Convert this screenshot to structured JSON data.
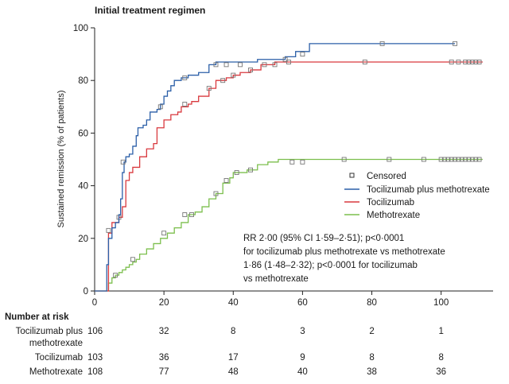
{
  "chart_data": {
    "type": "line",
    "subtype": "kaplan-meier",
    "title": "Initial treatment regimen",
    "ylabel": "Sustained remission (% of patients)",
    "xlim": [
      0,
      115
    ],
    "ylim": [
      0,
      100
    ],
    "x_ticks": [
      0,
      20,
      40,
      60,
      80,
      100
    ],
    "y_ticks": [
      0,
      20,
      40,
      60,
      80,
      100
    ],
    "grid": false,
    "legend_position": "center-right",
    "censored_label": "Censored",
    "series": [
      {
        "name": "Tocilizumab plus methotrexate",
        "color": "#2b5fa8",
        "steps": [
          [
            0,
            0
          ],
          [
            3,
            0
          ],
          [
            3.5,
            10
          ],
          [
            4,
            20
          ],
          [
            5,
            24
          ],
          [
            6,
            26
          ],
          [
            7,
            29
          ],
          [
            7.5,
            35
          ],
          [
            8,
            45
          ],
          [
            8.5,
            49
          ],
          [
            9,
            51
          ],
          [
            10,
            52
          ],
          [
            11,
            55
          ],
          [
            12,
            59
          ],
          [
            12.5,
            62
          ],
          [
            14,
            63
          ],
          [
            15,
            65
          ],
          [
            16,
            68
          ],
          [
            18,
            69
          ],
          [
            19,
            71
          ],
          [
            20,
            74
          ],
          [
            21,
            76
          ],
          [
            22,
            78
          ],
          [
            23,
            80
          ],
          [
            25,
            81
          ],
          [
            27,
            82
          ],
          [
            30,
            83
          ],
          [
            33,
            86
          ],
          [
            35,
            87
          ],
          [
            45,
            87
          ],
          [
            47,
            88
          ],
          [
            55,
            89
          ],
          [
            58,
            91
          ],
          [
            62,
            94
          ],
          [
            104,
            94
          ]
        ],
        "censored": [
          [
            4,
            23
          ],
          [
            8.2,
            49
          ],
          [
            19,
            70
          ],
          [
            26,
            81
          ],
          [
            35,
            86
          ],
          [
            38,
            86
          ],
          [
            42,
            86
          ],
          [
            55,
            88
          ],
          [
            60,
            90
          ],
          [
            83,
            94
          ],
          [
            104,
            94
          ]
        ]
      },
      {
        "name": "Tocilizumab",
        "color": "#d9393e",
        "steps": [
          [
            0,
            0
          ],
          [
            3,
            0
          ],
          [
            4,
            22
          ],
          [
            5,
            26
          ],
          [
            7,
            28
          ],
          [
            8,
            32
          ],
          [
            9,
            42
          ],
          [
            10,
            45
          ],
          [
            11,
            47
          ],
          [
            13,
            51
          ],
          [
            15,
            54
          ],
          [
            17,
            56
          ],
          [
            18,
            62
          ],
          [
            20,
            65
          ],
          [
            22,
            67
          ],
          [
            24,
            68
          ],
          [
            25,
            70
          ],
          [
            27,
            71
          ],
          [
            28,
            72
          ],
          [
            30,
            74
          ],
          [
            33,
            77
          ],
          [
            35,
            80
          ],
          [
            38,
            81
          ],
          [
            40,
            82
          ],
          [
            42,
            83
          ],
          [
            45,
            84
          ],
          [
            48,
            86
          ],
          [
            52,
            87
          ],
          [
            112,
            87
          ]
        ],
        "censored": [
          [
            7,
            28
          ],
          [
            26,
            71
          ],
          [
            33,
            77
          ],
          [
            37,
            80
          ],
          [
            40,
            82
          ],
          [
            45,
            84
          ],
          [
            49,
            86
          ],
          [
            52,
            86
          ],
          [
            56,
            87
          ],
          [
            78,
            87
          ],
          [
            103,
            87
          ],
          [
            105,
            87
          ],
          [
            107,
            87
          ],
          [
            108,
            87
          ],
          [
            109,
            87
          ],
          [
            110,
            87
          ],
          [
            111,
            87
          ]
        ]
      },
      {
        "name": "Methotrexate",
        "color": "#7cbf4d",
        "steps": [
          [
            0,
            0
          ],
          [
            3,
            0
          ],
          [
            4,
            3
          ],
          [
            5,
            5
          ],
          [
            6,
            6
          ],
          [
            7,
            7
          ],
          [
            8,
            8
          ],
          [
            9,
            9
          ],
          [
            10,
            10
          ],
          [
            11,
            11
          ],
          [
            12,
            12
          ],
          [
            13,
            14
          ],
          [
            15,
            16
          ],
          [
            17,
            18
          ],
          [
            19,
            20
          ],
          [
            21,
            22
          ],
          [
            23,
            24
          ],
          [
            25,
            26
          ],
          [
            27,
            29
          ],
          [
            29,
            30
          ],
          [
            31,
            32
          ],
          [
            33,
            35
          ],
          [
            35,
            37
          ],
          [
            37,
            41
          ],
          [
            39,
            43
          ],
          [
            40,
            45
          ],
          [
            44,
            46
          ],
          [
            47,
            48
          ],
          [
            50,
            49
          ],
          [
            53,
            50
          ],
          [
            112,
            50
          ]
        ],
        "censored": [
          [
            6,
            6
          ],
          [
            11,
            12
          ],
          [
            20,
            22
          ],
          [
            26,
            29
          ],
          [
            28,
            29
          ],
          [
            35,
            37
          ],
          [
            38,
            42
          ],
          [
            41,
            45
          ],
          [
            45,
            46
          ],
          [
            57,
            49
          ],
          [
            60,
            49
          ],
          [
            72,
            50
          ],
          [
            85,
            50
          ],
          [
            95,
            50
          ],
          [
            100,
            50
          ],
          [
            101,
            50
          ],
          [
            102,
            50
          ],
          [
            103,
            50
          ],
          [
            104,
            50
          ],
          [
            105,
            50
          ],
          [
            106,
            50
          ],
          [
            107,
            50
          ],
          [
            108,
            50
          ],
          [
            109,
            50
          ],
          [
            110,
            50
          ],
          [
            111,
            50
          ]
        ]
      }
    ],
    "annotation_lines": [
      "RR 2·00 (95% CI 1·59–2·51); p<0·0001",
      "for tocilizumab plus methotrexate vs methotrexate",
      "1·86 (1·48–2·32); p<0·0001 for tocilizumab",
      "vs methotrexate"
    ],
    "risk_table": {
      "title": "Number at risk",
      "times": [
        0,
        20,
        40,
        60,
        80,
        100
      ],
      "rows": [
        {
          "label_lines": [
            "Tocilizumab plus",
            "methotrexate"
          ],
          "values": [
            106,
            32,
            8,
            3,
            2,
            1
          ]
        },
        {
          "label_lines": [
            "Tocilizumab"
          ],
          "values": [
            103,
            36,
            17,
            9,
            8,
            8
          ]
        },
        {
          "label_lines": [
            "Methotrexate"
          ],
          "values": [
            108,
            77,
            48,
            40,
            38,
            36
          ]
        }
      ]
    }
  }
}
